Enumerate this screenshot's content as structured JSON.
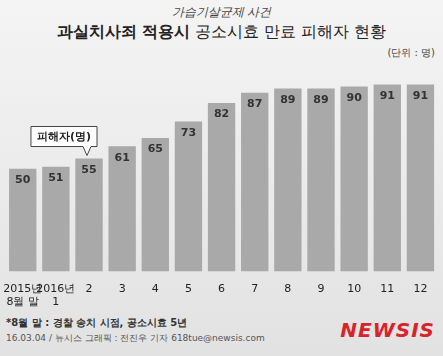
{
  "chart_data": {
    "type": "bar",
    "subtitle": "가습기살균제 사건",
    "title": "과실치사죄 적용시 공소시효 만료 피해자 현황",
    "unit_note": "(단위 : 명)",
    "annotations": [
      "피해자(명)"
    ],
    "categories": [
      [
        "2015년",
        "8월 말"
      ],
      [
        "2016년",
        "1"
      ],
      "2",
      "3",
      "4",
      "5",
      "6",
      "7",
      "8",
      "9",
      "10",
      "11",
      "12"
    ],
    "values": [
      50,
      51,
      55,
      61,
      65,
      73,
      82,
      87,
      89,
      89,
      90,
      91,
      91
    ],
    "color": "#a9a9a9",
    "ylim": [
      0,
      100
    ],
    "grid": false,
    "data_labels": true,
    "tick_labels": "x",
    "footnote": "*8월 말 : 경찰 송치 시점, 공소시효 5년",
    "credit": "16.03.04 / 뉴시스 그래픽 : 전진우 기자 618tue@newsis.com",
    "logo": "NEWSIS"
  }
}
